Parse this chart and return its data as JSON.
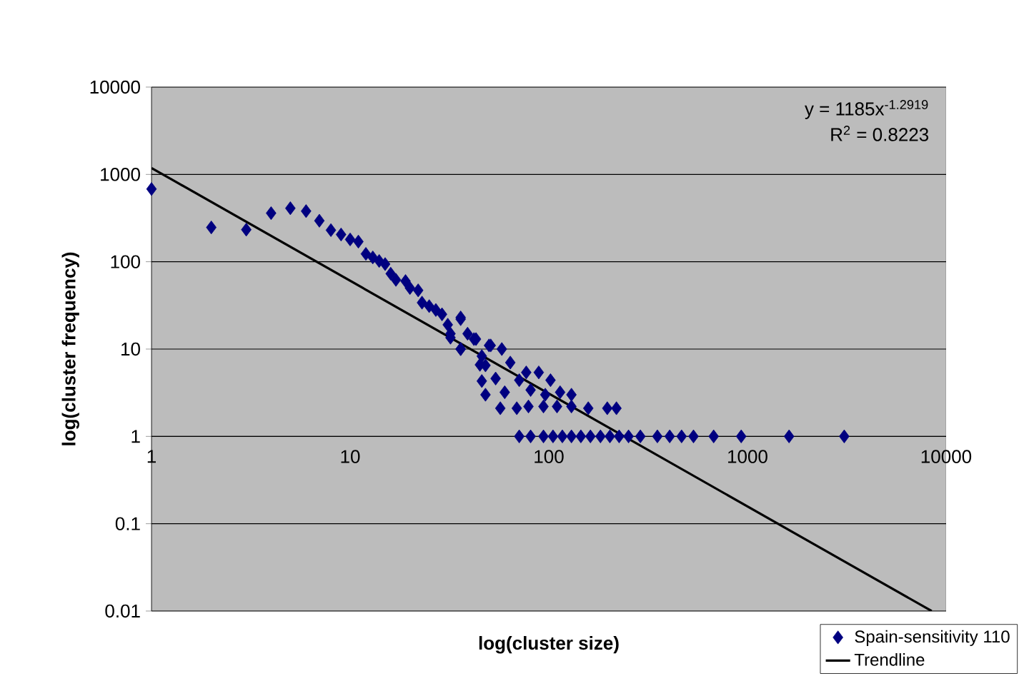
{
  "chart_data": {
    "type": "scatter",
    "xlabel": "log(cluster size)",
    "ylabel": "log(cluster frequency)",
    "log": "xy",
    "grid": "y",
    "legend": "bottom right",
    "xlim": [
      1,
      10000
    ],
    "xticks": [
      1,
      10,
      100,
      1000,
      10000
    ],
    "ylim": [
      0.01,
      10000
    ],
    "yticks": [
      0.01,
      0.1,
      1,
      10,
      100,
      1000,
      10000
    ],
    "annotations": [
      "y = 1185x$^{-1.2919}$",
      "R$^{2}$ = 0.8223"
    ],
    "series": [
      {
        "name": "Spain-sensitivity 110",
        "marker": "diamond",
        "color": "#000080",
        "x": [
          1,
          2,
          3,
          4,
          5,
          6,
          7,
          8,
          9,
          10,
          11,
          12,
          13,
          14,
          15,
          16,
          17,
          19,
          20,
          22,
          23,
          25,
          27,
          29,
          31,
          36,
          32,
          36,
          39,
          42,
          46,
          51,
          48,
          36,
          32,
          36,
          43,
          50,
          58,
          45,
          64,
          46,
          48,
          57,
          54,
          60,
          69,
          77,
          89,
          102,
          71,
          81,
          96,
          114,
          130,
          79,
          94,
          110,
          130,
          158,
          197,
          219,
          71,
          81,
          94,
          105,
          117,
          130,
          145,
          162,
          182,
          203,
          226,
          252,
          289,
          352,
          406,
          466,
          535,
          676,
          930,
          1620,
          3070
        ],
        "values": [
          680,
          247,
          233,
          360,
          410,
          380,
          295,
          230,
          205,
          180,
          170,
          123,
          112,
          102,
          94,
          73,
          62,
          60,
          50,
          47,
          34,
          31,
          28,
          25,
          19,
          22,
          15,
          10,
          15,
          13,
          8.3,
          11,
          6.5,
          23,
          13.5,
          10,
          13,
          11,
          10,
          6.6,
          7,
          4.3,
          3.0,
          2.1,
          4.6,
          3.2,
          2.1,
          5.4,
          5.4,
          4.4,
          4.4,
          3.4,
          3.0,
          3.2,
          3.0,
          2.2,
          2.2,
          2.2,
          2.2,
          2.1,
          2.1,
          2.1,
          1,
          1,
          1,
          1,
          1,
          1,
          1,
          1,
          1,
          1,
          1,
          1,
          1,
          1,
          1,
          1,
          1,
          1,
          1,
          1,
          1
        ]
      },
      {
        "name": "Trendline",
        "type": "line",
        "marker": "none",
        "color": "#000000",
        "x": [
          1,
          8460
        ],
        "values": [
          1185,
          0.01
        ]
      }
    ]
  }
}
